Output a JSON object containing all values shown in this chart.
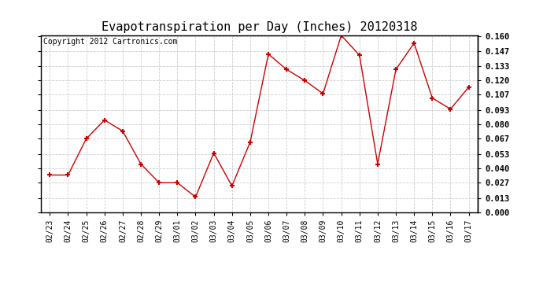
{
  "title": "Evapotranspiration per Day (Inches) 20120318",
  "copyright": "Copyright 2012 Cartronics.com",
  "dates": [
    "02/23",
    "02/24",
    "02/25",
    "02/26",
    "02/27",
    "02/28",
    "02/29",
    "03/01",
    "03/02",
    "03/03",
    "03/04",
    "03/05",
    "03/06",
    "03/07",
    "03/08",
    "03/09",
    "03/10",
    "03/11",
    "03/12",
    "03/13",
    "03/14",
    "03/15",
    "03/16",
    "03/17"
  ],
  "values": [
    0.034,
    0.034,
    0.067,
    0.084,
    0.074,
    0.044,
    0.027,
    0.027,
    0.014,
    0.054,
    0.024,
    0.064,
    0.144,
    0.13,
    0.12,
    0.108,
    0.161,
    0.143,
    0.044,
    0.13,
    0.154,
    0.104,
    0.094,
    0.114
  ],
  "line_color": "#cc0000",
  "marker": "+",
  "marker_size": 5,
  "marker_linewidth": 1.5,
  "background_color": "#ffffff",
  "plot_bg_color": "#ffffff",
  "grid_color": "#cccccc",
  "ylim": [
    0.0,
    0.16
  ],
  "yticks": [
    0.0,
    0.013,
    0.027,
    0.04,
    0.053,
    0.067,
    0.08,
    0.093,
    0.107,
    0.12,
    0.133,
    0.147,
    0.16
  ],
  "title_fontsize": 11,
  "copyright_fontsize": 7,
  "tick_fontsize": 7.5,
  "xtick_fontsize": 7
}
